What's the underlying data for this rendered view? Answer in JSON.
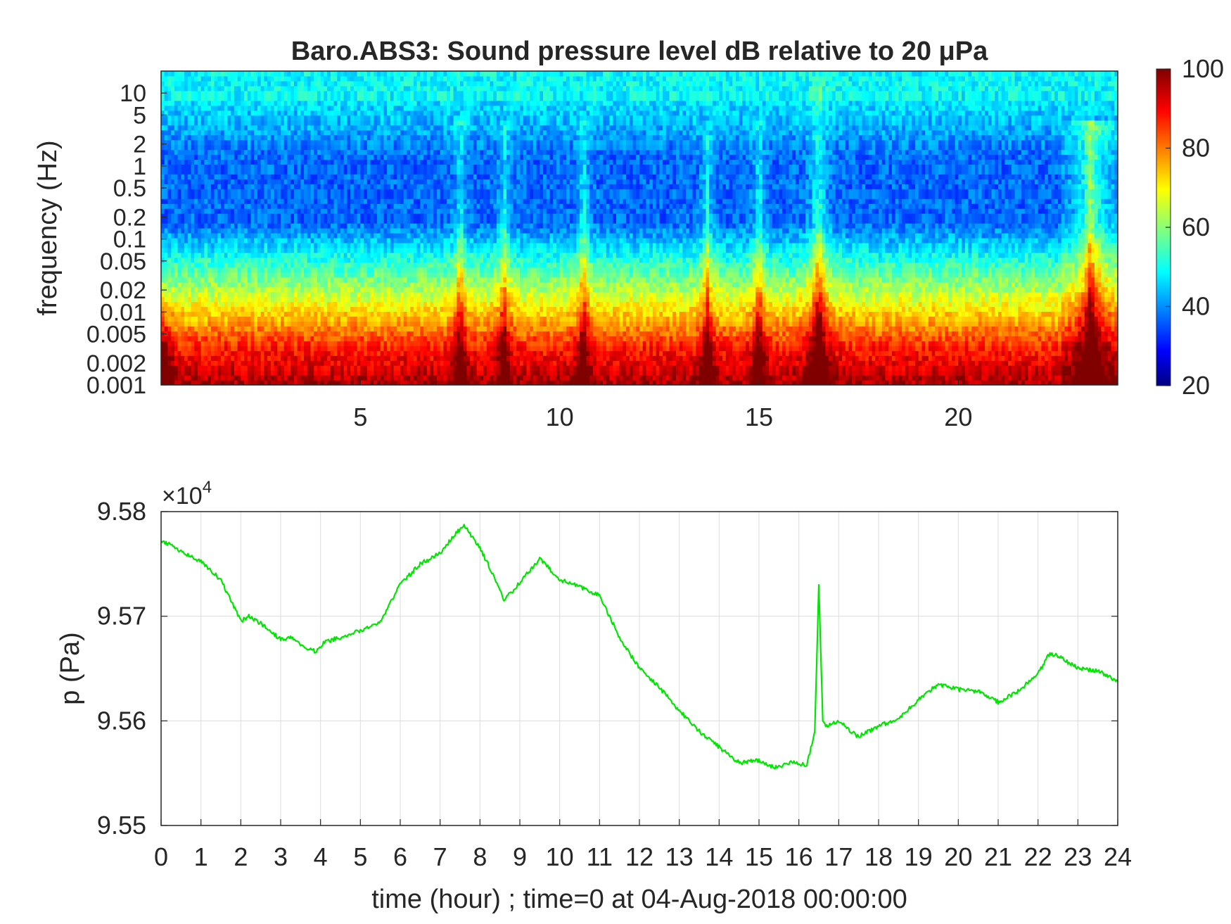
{
  "chart_data": [
    {
      "type": "heatmap",
      "title": "Baro.ABS3: Sound pressure level dB relative to 20 μPa",
      "ylabel": "frequency (Hz)",
      "xlabel": "",
      "xticks": [
        "5",
        "10",
        "15",
        "20"
      ],
      "xtick_values": [
        5,
        10,
        15,
        20
      ],
      "yticks": [
        "10",
        "5",
        "2",
        "1",
        "0.5",
        "0.2",
        "0.1",
        "0.05",
        "0.02",
        "0.01",
        "0.005",
        "0.002",
        "0.001"
      ],
      "ytick_values": [
        10,
        5,
        2,
        1,
        0.5,
        0.2,
        0.1,
        0.05,
        0.02,
        0.01,
        0.005,
        0.002,
        0.001
      ],
      "xlim": [
        0,
        24
      ],
      "ylim": [
        0.001,
        20
      ],
      "yscale": "log",
      "colormap": "jet",
      "colorbar": {
        "ticks": [
          "100",
          "80",
          "60",
          "40",
          "20"
        ],
        "tick_values": [
          100,
          80,
          60,
          40,
          20
        ],
        "range": [
          20,
          100
        ]
      },
      "features": {
        "strong_event_hours": [
          16.5
        ],
        "broadband_bursts_hours": [
          7.5,
          8.6,
          10.6,
          13.7,
          15.0,
          23.3
        ]
      }
    },
    {
      "type": "line",
      "xlabel": "time (hour) ; time=0 at 04-Aug-2018 00:00:00",
      "ylabel": "p (Pa)",
      "multiplier": "×10",
      "multiplier_exponent": "4",
      "xticks": [
        "0",
        "1",
        "2",
        "3",
        "4",
        "5",
        "6",
        "7",
        "8",
        "9",
        "10",
        "11",
        "12",
        "13",
        "14",
        "15",
        "16",
        "17",
        "18",
        "19",
        "20",
        "21",
        "22",
        "23",
        "24"
      ],
      "yticks": [
        "9.58",
        "9.57",
        "9.56",
        "9.55"
      ],
      "ytick_values": [
        9.58,
        9.57,
        9.56,
        9.55
      ],
      "xlim": [
        0,
        24
      ],
      "ylim": [
        9.55,
        9.58
      ],
      "grid": true,
      "series": [
        {
          "color": "#00e600",
          "x": [
            0,
            0.25,
            0.5,
            1.0,
            1.5,
            2.0,
            2.2,
            2.5,
            3.0,
            3.3,
            3.6,
            3.9,
            4.1,
            4.5,
            5.0,
            5.5,
            6.0,
            6.5,
            7.0,
            7.3,
            7.6,
            8.0,
            8.3,
            8.6,
            9.0,
            9.5,
            10.0,
            10.5,
            11.0,
            11.5,
            12.0,
            12.5,
            13.0,
            13.5,
            14.0,
            14.5,
            15.0,
            15.4,
            15.8,
            16.2,
            16.4,
            16.5,
            16.6,
            16.7,
            17.0,
            17.3,
            17.5,
            18.0,
            18.5,
            19.0,
            19.5,
            20.0,
            20.5,
            21.0,
            21.5,
            22.0,
            22.3,
            22.6,
            23.0,
            23.5,
            24.0
          ],
          "y": [
            9.5771,
            9.5769,
            9.5762,
            9.5752,
            9.5735,
            9.5695,
            9.57,
            9.5693,
            9.5678,
            9.568,
            9.567,
            9.5666,
            9.5675,
            9.568,
            9.5686,
            9.5695,
            9.573,
            9.575,
            9.576,
            9.5775,
            9.5787,
            9.5765,
            9.5742,
            9.5715,
            9.5732,
            9.5755,
            9.5735,
            9.5728,
            9.572,
            9.568,
            9.565,
            9.5632,
            9.561,
            9.559,
            9.5575,
            9.556,
            9.5562,
            9.5555,
            9.556,
            9.5558,
            9.559,
            9.573,
            9.56,
            9.5595,
            9.56,
            9.559,
            9.5585,
            9.5595,
            9.5602,
            9.562,
            9.5635,
            9.563,
            9.5628,
            9.5618,
            9.5628,
            9.5645,
            9.5665,
            9.566,
            9.565,
            9.5648,
            9.5638
          ]
        }
      ]
    }
  ]
}
